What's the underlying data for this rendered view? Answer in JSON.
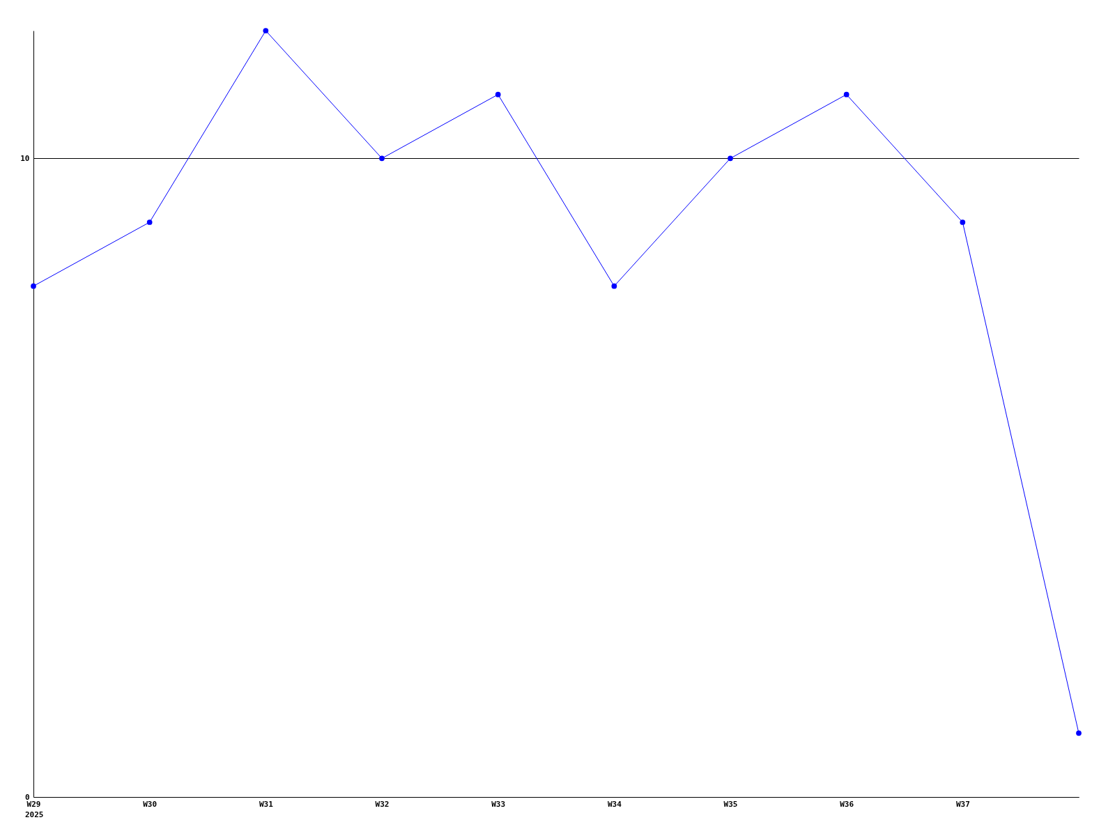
{
  "chart_data": {
    "type": "line",
    "categories": [
      "W29",
      "W30",
      "W31",
      "W32",
      "W33",
      "W34",
      "W35",
      "W36",
      "W37",
      null
    ],
    "series": [
      {
        "color": "#0000ff",
        "values": [
          8,
          9,
          12,
          10,
          11,
          8,
          10,
          11,
          9,
          1
        ]
      }
    ],
    "ylim": [
      0,
      12
    ],
    "yticks": [
      0,
      10
    ],
    "grid": "y",
    "marker": "circle",
    "line_style": "solid",
    "annotations": [
      "2025"
    ]
  }
}
